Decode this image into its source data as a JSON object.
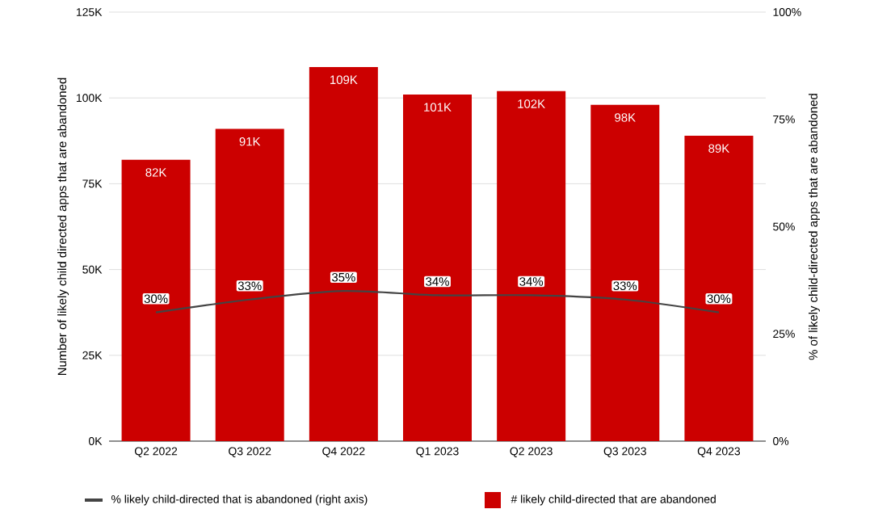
{
  "chart_data": {
    "type": "bar",
    "categories": [
      "Q2 2022",
      "Q3 2022",
      "Q4 2022",
      "Q1 2023",
      "Q2 2023",
      "Q3 2023",
      "Q4 2023"
    ],
    "ylabel": "Number of likely child directed apps that are abandoned",
    "y2label": "% of likely child-directed apps that are abandoned",
    "ylim": [
      0,
      125000
    ],
    "yticks": [
      {
        "value": 0,
        "label": "0K"
      },
      {
        "value": 25000,
        "label": "25K"
      },
      {
        "value": 50000,
        "label": "50K"
      },
      {
        "value": 75000,
        "label": "75K"
      },
      {
        "value": 100000,
        "label": "100K"
      },
      {
        "value": 125000,
        "label": "125K"
      }
    ],
    "y2lim": [
      0,
      100
    ],
    "y2ticks": [
      {
        "value": 0,
        "label": "0%"
      },
      {
        "value": 25,
        "label": "25%"
      },
      {
        "value": 50,
        "label": "50%"
      },
      {
        "value": 75,
        "label": "75%"
      },
      {
        "value": 100,
        "label": "100%"
      }
    ],
    "grid": "y",
    "legend": "bottom",
    "series": [
      {
        "name": "% likely child-directed that is abandoned (right axis)",
        "type": "line",
        "axis": "y2",
        "color": "#444444",
        "values": [
          30,
          33,
          35,
          34,
          34,
          33,
          30
        ],
        "value_labels": [
          "30%",
          "33%",
          "35%",
          "34%",
          "34%",
          "33%",
          "30%"
        ]
      },
      {
        "name": "# likely child-directed that are abandoned",
        "color": "#cc0000",
        "values": [
          82000,
          91000,
          109000,
          101000,
          102000,
          98000,
          89000
        ],
        "value_labels": [
          "82K",
          "91K",
          "109K",
          "101K",
          "102K",
          "98K",
          "89K"
        ]
      }
    ]
  }
}
